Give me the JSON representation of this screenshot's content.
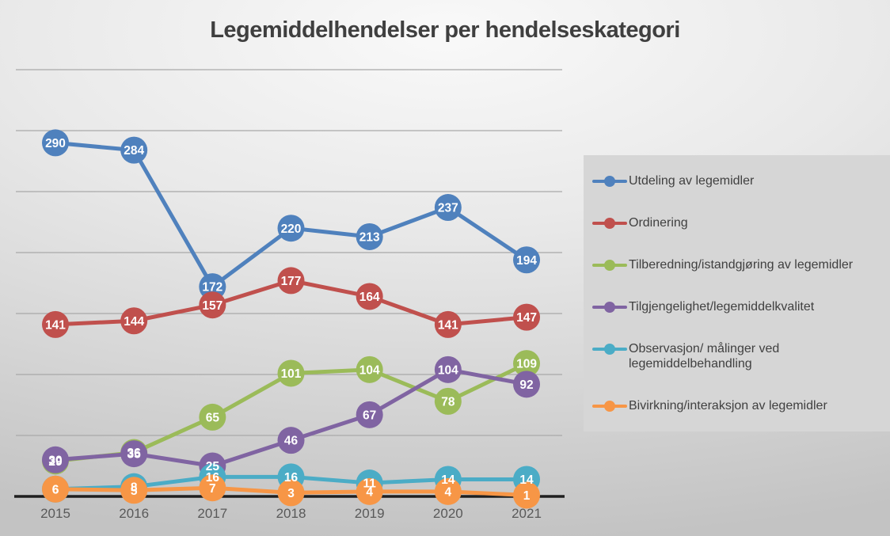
{
  "title": "Legemiddelhendelser per hendelseskategori",
  "chart_data": {
    "type": "line",
    "x": [
      "2015",
      "2016",
      "2017",
      "2018",
      "2019",
      "2020",
      "2021"
    ],
    "series": [
      {
        "name": "Utdeling av legemidler",
        "color": "#4F81BD",
        "values": [
          290,
          284,
          172,
          220,
          213,
          237,
          194
        ]
      },
      {
        "name": "Ordinering",
        "color": "#C0504D",
        "values": [
          141,
          144,
          157,
          177,
          164,
          141,
          147
        ]
      },
      {
        "name": "Tilberedning/istandgjøring av legemidler",
        "color": "#9BBB59",
        "values": [
          29,
          36,
          65,
          101,
          104,
          78,
          109
        ]
      },
      {
        "name": "Tilgjengelighet/legemiddelkvalitet",
        "color": "#8064A2",
        "values": [
          30,
          35,
          25,
          46,
          67,
          104,
          92
        ]
      },
      {
        "name": "Observasjon/ målinger ved legemiddelbehandling",
        "color": "#4BACC6",
        "values": [
          6,
          8,
          16,
          16,
          11,
          14,
          14
        ]
      },
      {
        "name": "Bivirkning/interaksjon av legemidler",
        "color": "#F79646",
        "values": [
          6,
          5,
          7,
          3,
          4,
          4,
          1
        ]
      }
    ],
    "ylim": [
      0,
      350
    ],
    "grid": true,
    "grid_step": 50,
    "gridline_color": "#a9a9a9",
    "axis_color": "#1f1f1f",
    "tick_label_color": "#595959",
    "data_label_color": "#ffffff",
    "data_labels": true,
    "legend_position": "right",
    "xlabel": "",
    "ylabel": ""
  }
}
